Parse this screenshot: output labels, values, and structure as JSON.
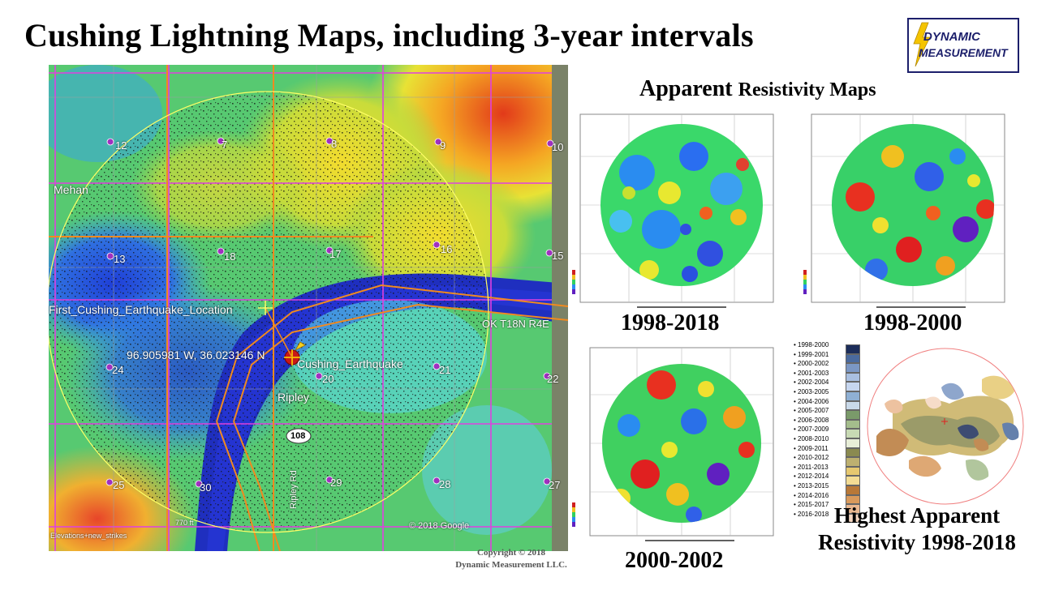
{
  "title": "Cushing Lightning Maps, including 3-year intervals",
  "logo": {
    "line1": "DYNAMIC",
    "line2": "MEASUREMENT"
  },
  "subtitle": {
    "part1": "Apparent",
    "part2": "Resistivity Maps"
  },
  "map": {
    "sections": [
      "12",
      "7",
      "8",
      "9",
      "10",
      "13",
      "18",
      "17",
      "16",
      "15",
      "24",
      "20",
      "21",
      "22",
      "25",
      "30",
      "29",
      "28",
      "27"
    ],
    "labels": {
      "mehan": "Mehan",
      "first_quake": "First_Cushing_Earthquake_Location",
      "coords": "96.905981 W, 36.023146 N",
      "cushing_quake": "Cushing_Earthquake",
      "ripley": "Ripley",
      "township": "OK T18N R4E",
      "highway": "108",
      "road": "Ripley Rd",
      "google": "© 2018 Google",
      "elevations": "Elevations+new_strikes",
      "ft": "770 ft"
    }
  },
  "panels": {
    "p1": {
      "year": "1998-2018"
    },
    "p2": {
      "year": "1998-2000"
    },
    "p3": {
      "year": "2000-2002"
    }
  },
  "legend": {
    "items": [
      "1998-2000",
      "1999-2001",
      "2000-2002",
      "2001-2003",
      "2002-2004",
      "2003-2005",
      "2004-2006",
      "2005-2007",
      "2006-2008",
      "2007-2009",
      "2008-2010",
      "2009-2011",
      "2010-2012",
      "2011-2013",
      "2012-2014",
      "2013-2015",
      "2014-2016",
      "2015-2017",
      "2016-2018"
    ],
    "colors": [
      "#1c2d5a",
      "#4a6a9e",
      "#7b97c4",
      "#a9bfe0",
      "#c6d6ef",
      "#8fb0d4",
      "#c9d9e9",
      "#7a9a6a",
      "#a4bd8c",
      "#c8dab4",
      "#e8eed8",
      "#8a8a50",
      "#bdb070",
      "#e6c870",
      "#f3dc94",
      "#b87838",
      "#d99a5c",
      "#eab890",
      "#f5d6c0"
    ]
  },
  "highest": {
    "line1": "Highest Apparent",
    "line2": "Resistivity 1998-2018"
  },
  "copyright": {
    "line1": "Copyright © 2018",
    "line2": "Dynamic Measurement LLC."
  }
}
